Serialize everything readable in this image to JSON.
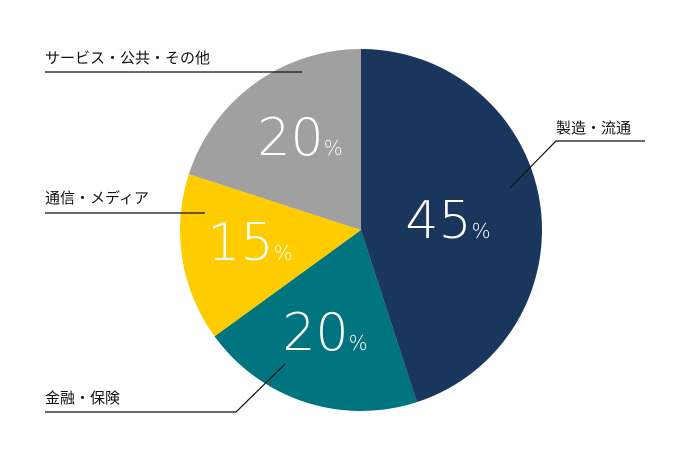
{
  "chart_data": {
    "type": "pie",
    "start": "top",
    "direction": "clockwise",
    "slices": [
      {
        "label": "製造・流通",
        "value": 45,
        "color": "#1b365d"
      },
      {
        "label": "金融・保険",
        "value": 20,
        "color": "#00757f"
      },
      {
        "label": "通信・メディア",
        "value": 15,
        "color": "#ffcc00"
      },
      {
        "label": "サービス・公共・その他",
        "value": 20,
        "color": "#a0a0a0"
      }
    ],
    "value_suffix": "%"
  }
}
